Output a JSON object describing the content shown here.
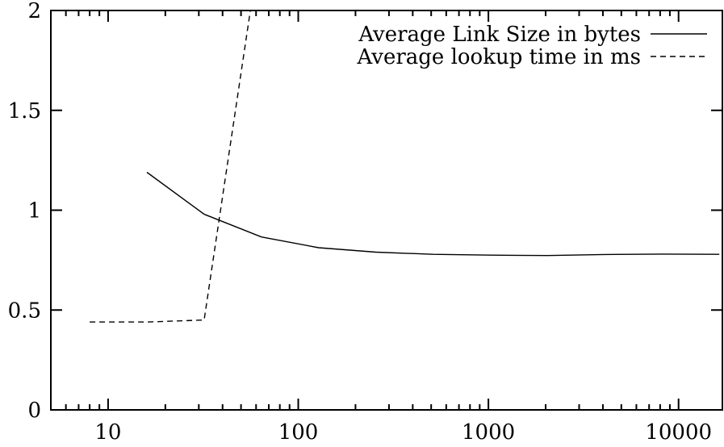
{
  "chart_data": {
    "type": "line",
    "title": "",
    "xlabel": "",
    "ylabel": "",
    "x_scale": "log",
    "xlim": [
      5,
      17000
    ],
    "ylim": [
      0,
      2
    ],
    "x_ticks": [
      10,
      100,
      1000,
      10000
    ],
    "x_tick_labels": [
      "10",
      "100",
      "1000",
      "10000"
    ],
    "y_ticks": [
      0,
      0.5,
      1,
      1.5,
      2
    ],
    "y_tick_labels": [
      "0",
      "0.5",
      "1",
      "1.5",
      "2"
    ],
    "grid": false,
    "legend_position": "top-right",
    "series": [
      {
        "name": "Average Link Size in bytes",
        "style": "solid",
        "color": "#000000",
        "points": [
          [
            16,
            1.19
          ],
          [
            32,
            0.98
          ],
          [
            64,
            0.866
          ],
          [
            128,
            0.812
          ],
          [
            256,
            0.79
          ],
          [
            512,
            0.779
          ],
          [
            1024,
            0.775
          ],
          [
            2048,
            0.773
          ],
          [
            4096,
            0.778
          ],
          [
            8192,
            0.78
          ],
          [
            16384,
            0.779
          ]
        ]
      },
      {
        "name": "Average lookup time in ms",
        "style": "dashed",
        "color": "#000000",
        "points": [
          [
            8,
            0.44
          ],
          [
            16,
            0.44
          ],
          [
            32,
            0.45
          ],
          [
            56,
            2.0
          ]
        ]
      }
    ]
  }
}
